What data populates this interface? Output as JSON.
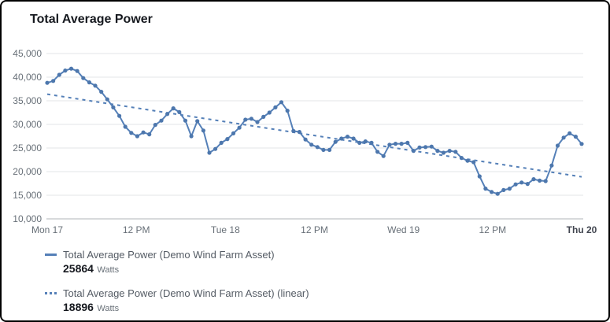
{
  "widget": {
    "title": "Total Average Power"
  },
  "legend": {
    "items": [
      {
        "swatch": "solid-line",
        "label": "Total Average Power (Demo Wind Farm Asset)",
        "value": "25864",
        "unit": "Watts"
      },
      {
        "swatch": "dashed-line",
        "label": "Total Average Power (Demo Wind Farm Asset) (linear)",
        "value": "18896",
        "unit": "Watts"
      }
    ]
  },
  "colors": {
    "series_line": "#5580b8",
    "series_marker": "#4d77ad",
    "trend_line": "#5580b8",
    "grid": "#e3e5e7",
    "grid_bottom": "#b0b5b8",
    "axis_text": "#687078",
    "axis_text_last": "#424650",
    "title_text": "#16191f"
  },
  "chart_data": {
    "type": "line",
    "title": "Total Average Power",
    "xlabel": "",
    "ylabel": "Watts",
    "grid": true,
    "legend_position": "bottom-left",
    "ylim": [
      10000,
      45000
    ],
    "y_tick_step": 5000,
    "y_tick_labels": [
      "45,000",
      "40,000",
      "35,000",
      "30,000",
      "25,000",
      "20,000",
      "15,000",
      "10,000"
    ],
    "x_tick_labels": [
      "Mon 17",
      "12 PM",
      "Tue 18",
      "12 PM",
      "Wed 19",
      "12 PM",
      "Thu 20"
    ],
    "x_range_hours": 72,
    "series": [
      {
        "name": "Total Average Power (Demo Wind Farm Asset)",
        "style": "solid",
        "current_value": 25864,
        "unit": "Watts",
        "values": [
          38800,
          39200,
          40500,
          41400,
          41800,
          41300,
          39800,
          38900,
          38200,
          36900,
          35300,
          33600,
          31800,
          29500,
          28200,
          27500,
          28300,
          27900,
          29900,
          30800,
          32200,
          33400,
          32600,
          30800,
          27500,
          30700,
          28700,
          24000,
          24800,
          26100,
          26900,
          28100,
          29300,
          31000,
          31200,
          30500,
          31600,
          32500,
          33600,
          34700,
          32900,
          28600,
          28400,
          26800,
          25700,
          25200,
          24600,
          24600,
          26300,
          27000,
          27400,
          27000,
          26100,
          26400,
          26100,
          24200,
          23300,
          25700,
          25900,
          25900,
          26100,
          24400,
          25100,
          25200,
          25300,
          24400,
          24000,
          24400,
          24200,
          22900,
          22300,
          22000,
          19000,
          16400,
          15700,
          15300,
          16100,
          16400,
          17300,
          17700,
          17400,
          18400,
          18100,
          18000,
          21300,
          25500,
          27200,
          28100,
          27400,
          25864
        ]
      },
      {
        "name": "Total Average Power (Demo Wind Farm Asset) (linear)",
        "style": "dashed",
        "current_value": 18896,
        "unit": "Watts",
        "trend_from": 36400,
        "trend_to": 18896
      }
    ]
  }
}
